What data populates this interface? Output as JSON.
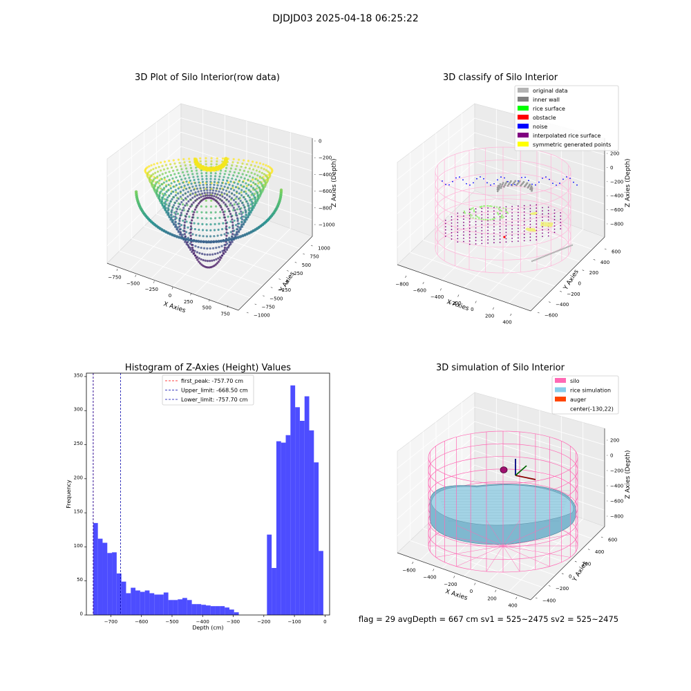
{
  "figure_title": "DJDJD03 2025-04-18 06:25:22",
  "status_line": "flag = 29  avgDepth = 667 cm  sv1 = 525~2475  sv2 = 525~2475",
  "chart_data": [
    {
      "id": "raw",
      "type": "scatter3d",
      "title": "3D Plot of Silo Interior(row data)",
      "xlabel": "X Axies",
      "ylabel": "Y Axies",
      "zlabel": "Z Axies (Depth)",
      "x_ticks": [
        "−750",
        "−500",
        "−250",
        "0",
        "250",
        "500",
        "750"
      ],
      "y_ticks": [
        "−1000",
        "−750",
        "−500",
        "−250",
        "0",
        "250",
        "500",
        "750",
        "1000"
      ],
      "z_ticks": [
        "0",
        "−200",
        "−400",
        "−600",
        "−800",
        "−1000"
      ],
      "xlim": [
        -900,
        900
      ],
      "ylim": [
        -1000,
        1000
      ],
      "zlim": [
        -1100,
        0
      ],
      "colormap": "viridis"
    },
    {
      "id": "classify",
      "type": "scatter3d",
      "title": "3D classify of Silo Interior",
      "xlabel": "X Axies",
      "ylabel": "Y Axies",
      "zlabel": "Z Axies (Depth)",
      "x_ticks": [
        "−800",
        "−600",
        "−400",
        "−200",
        "0",
        "200",
        "400"
      ],
      "y_ticks": [
        "−600",
        "−400",
        "−200",
        "0",
        "200",
        "400",
        "600"
      ],
      "z_ticks": [
        "200",
        "0",
        "−200",
        "−400",
        "−600",
        "−800"
      ],
      "legend_position": "upper right",
      "legend": [
        {
          "label": "original data",
          "color": "#b4b4b4"
        },
        {
          "label": "inner wall",
          "color": "#808080"
        },
        {
          "label": "rice surface",
          "color": "#00ff00"
        },
        {
          "label": "obstacle",
          "color": "#ff0000"
        },
        {
          "label": "noise",
          "color": "#0000ff"
        },
        {
          "label": "interpolated rice surface",
          "color": "#800080"
        },
        {
          "label": "symmetric generated points",
          "color": "#ffff00"
        }
      ],
      "silo_color": "#ffb6d9"
    },
    {
      "id": "hist",
      "type": "bar",
      "title": "Histogram of Z-Axies (Height) Values",
      "xlabel": "Depth (cm)",
      "ylabel": "Frequency",
      "xlim": [
        -780,
        15
      ],
      "ylim": [
        0,
        355
      ],
      "x_ticks": [
        -700,
        -600,
        -500,
        -400,
        -300,
        -200,
        -100,
        0
      ],
      "y_ticks": [
        0,
        50,
        100,
        150,
        200,
        250,
        300,
        350
      ],
      "bar_color": "#4d4dff",
      "bin_width": 15.35,
      "bin_start": -757.7,
      "values": [
        135,
        112,
        106,
        91,
        92,
        61,
        49,
        32,
        40,
        36,
        34,
        36,
        32,
        30,
        30,
        33,
        22,
        22,
        23,
        25,
        22,
        16,
        16,
        15,
        14,
        13,
        13,
        13,
        11,
        8,
        4,
        0,
        0,
        0,
        0,
        0,
        0,
        118,
        69,
        255,
        253,
        264,
        337,
        305,
        285,
        321,
        271,
        224,
        94
      ],
      "lines": [
        {
          "label": "first_peak: -757.70 cm",
          "x": -757.7,
          "color": "#ff0000"
        },
        {
          "label": "Upper_limit: -668.50 cm",
          "x": -668.5,
          "color": "#0000aa"
        },
        {
          "label": "Lower_limit: -757.70 cm",
          "x": -757.7,
          "color": "#0000aa"
        }
      ],
      "legend_position": "upper center"
    },
    {
      "id": "sim",
      "type": "surface3d",
      "title": "3D simulation of Silo Interior",
      "xlabel": "X Axies",
      "ylabel": "Y Axies",
      "zlabel": "Z Axies (Depth)",
      "x_ticks": [
        "−600",
        "−400",
        "−200",
        "0",
        "200",
        "400"
      ],
      "y_ticks": [
        "−400",
        "−200",
        "0",
        "200",
        "400",
        "600"
      ],
      "z_ticks": [
        "200",
        "0",
        "−200",
        "−400",
        "−600",
        "−800"
      ],
      "legend_position": "upper right",
      "legend": [
        {
          "label": "silo",
          "color": "#ff69b4"
        },
        {
          "label": "rice simulation",
          "color": "#87ceeb"
        },
        {
          "label": "auger",
          "color": "#ff4500"
        },
        {
          "label": "center(-130,22)",
          "color": "none"
        }
      ]
    }
  ]
}
